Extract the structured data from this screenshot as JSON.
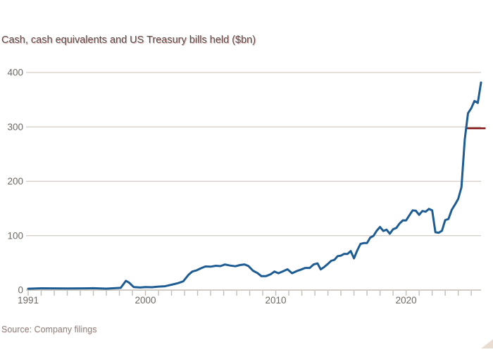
{
  "title": "Cash, cash equivalents and US Treasury bills held ($bn)",
  "source": {
    "label": "Source: Company filings"
  },
  "expand_icon": {
    "name": "expand-corner-triangle",
    "color": "#e9ddd1"
  },
  "colors": {
    "background": "#ffffff",
    "line": "#1e5c94",
    "grid": "#d2ccc5",
    "axis": "#c3bcb4",
    "tick": "#c3bcb4",
    "label": "#6e6862",
    "title": "#55514d",
    "source": "#8d8680",
    "annotation": "#801414"
  },
  "chart_data": {
    "type": "line",
    "title": "Cash, cash equivalents and US Treasury bills held ($bn)",
    "xlabel": "",
    "ylabel": "",
    "x_range": [
      1991,
      2025.75
    ],
    "ylim": [
      0,
      400
    ],
    "y_ticks": [
      0,
      100,
      200,
      300,
      400
    ],
    "x_tick_labels": [
      1991,
      2000,
      2010,
      2020
    ],
    "x_minor_tick_step_years": 1,
    "grid": "horizontal",
    "legend": "none",
    "series": [
      {
        "name": "Cash, cash equivalents and US Treasury bills ($bn)",
        "color": "#1e5c94",
        "points": [
          [
            1991.0,
            2.5
          ],
          [
            1992.0,
            3.2
          ],
          [
            1993.0,
            3.1
          ],
          [
            1994.0,
            3.0
          ],
          [
            1995.0,
            3.1
          ],
          [
            1996.0,
            3.4
          ],
          [
            1997.0,
            2.6
          ],
          [
            1998.1,
            4.0
          ],
          [
            1998.5,
            17.0
          ],
          [
            1998.75,
            13.5
          ],
          [
            1999.1,
            5.5
          ],
          [
            1999.6,
            4.6
          ],
          [
            2000.0,
            5.6
          ],
          [
            2000.5,
            5.2
          ],
          [
            2001.0,
            6.4
          ],
          [
            2001.5,
            7.0
          ],
          [
            2002.1,
            10.3
          ],
          [
            2002.5,
            12.7
          ],
          [
            2002.9,
            16.0
          ],
          [
            2003.3,
            28.0
          ],
          [
            2003.6,
            34.0
          ],
          [
            2003.9,
            36.0
          ],
          [
            2004.25,
            40.0
          ],
          [
            2004.6,
            43.4
          ],
          [
            2005.0,
            43.0
          ],
          [
            2005.4,
            44.7
          ],
          [
            2005.75,
            44.0
          ],
          [
            2006.1,
            47.0
          ],
          [
            2006.5,
            45.0
          ],
          [
            2006.9,
            43.7
          ],
          [
            2007.25,
            46.0
          ],
          [
            2007.6,
            47.1
          ],
          [
            2007.9,
            44.3
          ],
          [
            2008.25,
            35.6
          ],
          [
            2008.6,
            31.2
          ],
          [
            2008.9,
            25.5
          ],
          [
            2009.25,
            25.6
          ],
          [
            2009.6,
            29.0
          ],
          [
            2009.9,
            34.0
          ],
          [
            2010.2,
            31.0
          ],
          [
            2010.6,
            35.0
          ],
          [
            2010.9,
            38.2
          ],
          [
            2011.25,
            31.0
          ],
          [
            2011.6,
            34.8
          ],
          [
            2011.9,
            37.3
          ],
          [
            2012.25,
            40.7
          ],
          [
            2012.6,
            40.7
          ],
          [
            2012.9,
            47.0
          ],
          [
            2013.2,
            49.1
          ],
          [
            2013.45,
            37.9
          ],
          [
            2013.7,
            42.1
          ],
          [
            2014.0,
            48.2
          ],
          [
            2014.25,
            53.7
          ],
          [
            2014.5,
            55.5
          ],
          [
            2014.75,
            62.4
          ],
          [
            2015.0,
            63.3
          ],
          [
            2015.25,
            66.6
          ],
          [
            2015.5,
            66.3
          ],
          [
            2015.75,
            71.7
          ],
          [
            2016.0,
            58.3
          ],
          [
            2016.25,
            72.7
          ],
          [
            2016.5,
            84.8
          ],
          [
            2016.75,
            86.4
          ],
          [
            2017.0,
            86.4
          ],
          [
            2017.25,
            96.5
          ],
          [
            2017.5,
            99.7
          ],
          [
            2017.75,
            109.3
          ],
          [
            2018.0,
            116.0
          ],
          [
            2018.25,
            108.6
          ],
          [
            2018.5,
            111.1
          ],
          [
            2018.75,
            103.6
          ],
          [
            2019.0,
            111.9
          ],
          [
            2019.25,
            114.2
          ],
          [
            2019.5,
            122.4
          ],
          [
            2019.75,
            128.2
          ],
          [
            2020.0,
            128.0
          ],
          [
            2020.25,
            137.3
          ],
          [
            2020.5,
            146.6
          ],
          [
            2020.75,
            145.7
          ],
          [
            2021.0,
            138.3
          ],
          [
            2021.25,
            145.4
          ],
          [
            2021.5,
            144.1
          ],
          [
            2021.75,
            149.2
          ],
          [
            2022.0,
            146.7
          ],
          [
            2022.25,
            106.3
          ],
          [
            2022.5,
            105.4
          ],
          [
            2022.75,
            109.0
          ],
          [
            2023.0,
            128.6
          ],
          [
            2023.25,
            130.6
          ],
          [
            2023.5,
            147.4
          ],
          [
            2023.75,
            157.2
          ],
          [
            2024.0,
            167.6
          ],
          [
            2024.25,
            189.0
          ],
          [
            2024.5,
            276.9
          ],
          [
            2024.75,
            325.2
          ],
          [
            2025.0,
            334.2
          ],
          [
            2025.25,
            347.7
          ],
          [
            2025.5,
            344.1
          ],
          [
            2025.75,
            381.7
          ]
        ]
      }
    ],
    "annotations": [
      {
        "name": "record-level-marker",
        "type": "horizontal-segment",
        "y": 300,
        "x_start": 2024.62,
        "x_end": 2026.1,
        "color": "#801414"
      }
    ]
  }
}
